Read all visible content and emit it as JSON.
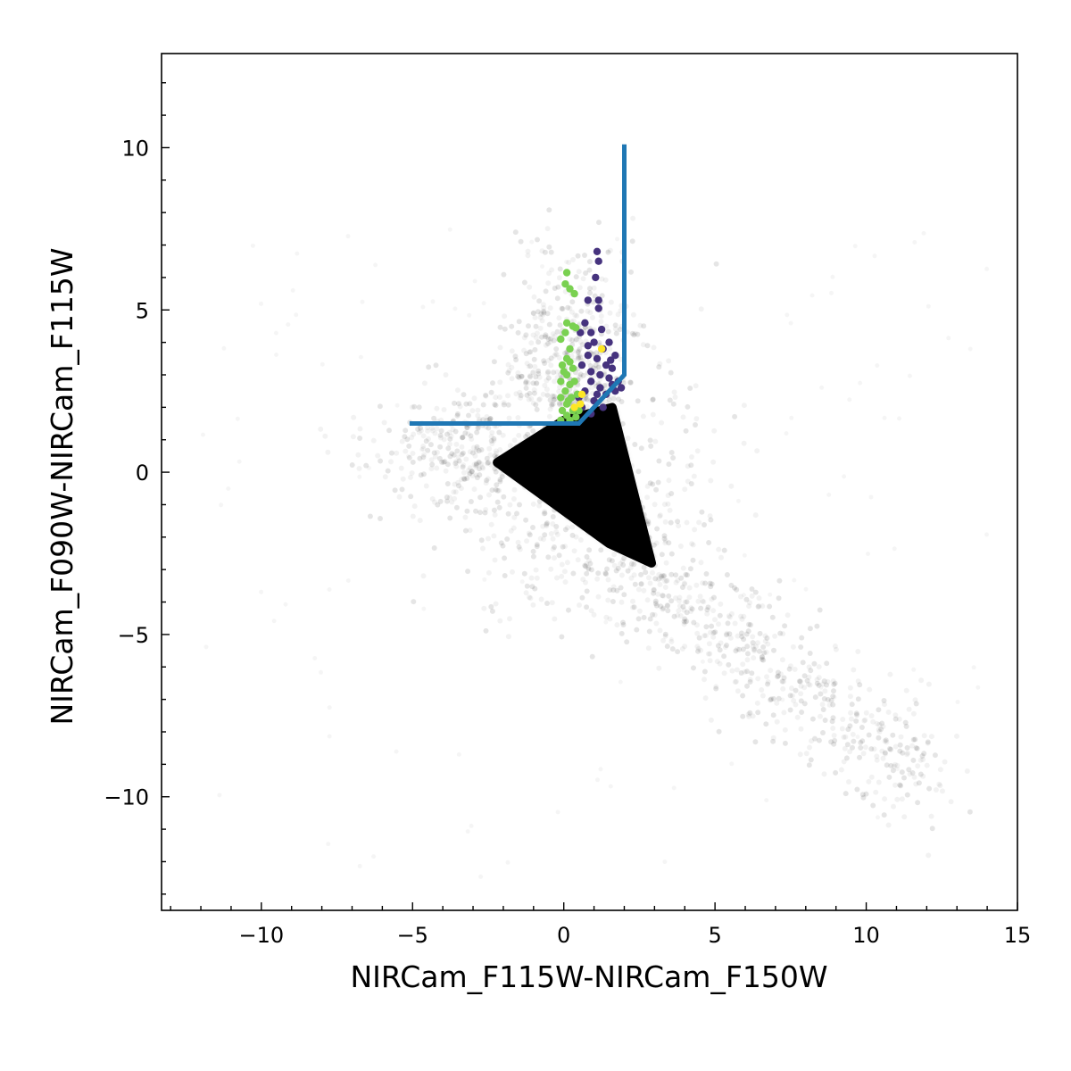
{
  "chart_data": {
    "type": "scatter",
    "title": "",
    "xlabel": "NIRCam_F115W-NIRCam_F150W",
    "ylabel": "NIRCam_F090W-NIRCam_F115W",
    "xlim": [
      -13.3,
      15.0
    ],
    "ylim": [
      -13.5,
      12.9
    ],
    "x_ticks": [
      -10,
      -5,
      0,
      5,
      10,
      15
    ],
    "y_ticks": [
      -10,
      -5,
      0,
      5,
      10
    ],
    "x_tick_labels": [
      "−10",
      "−5",
      "0",
      "5",
      "10",
      "15"
    ],
    "y_tick_labels": [
      "−10",
      "−5",
      "0",
      "5",
      "10"
    ],
    "grid": false,
    "legend": "none",
    "background_population": {
      "description_color": "#000000",
      "dense_region_polygon": [
        [
          -2.2,
          0.3
        ],
        [
          0.0,
          1.6
        ],
        [
          1.6,
          2.0
        ],
        [
          2.9,
          -2.8
        ],
        [
          1.5,
          -2.2
        ]
      ],
      "halo_extent_x": [
        -12,
        14
      ],
      "halo_extent_y": [
        -12.5,
        8.5
      ]
    },
    "selection_boundary": {
      "color": "#1f77b4",
      "points": [
        [
          -5.1,
          1.5
        ],
        [
          0.5,
          1.5
        ],
        [
          2.0,
          3.0
        ],
        [
          2.0,
          10.1
        ]
      ]
    },
    "highlight_series": [
      {
        "color": "#46337e",
        "points": [
          [
            1.1,
            6.8
          ],
          [
            1.15,
            6.5
          ],
          [
            1.05,
            6.0
          ],
          [
            0.8,
            5.3
          ],
          [
            1.15,
            5.3
          ],
          [
            1.15,
            5.05
          ],
          [
            0.7,
            4.6
          ],
          [
            0.9,
            4.3
          ],
          [
            0.55,
            4.3
          ],
          [
            1.0,
            4.0
          ],
          [
            1.5,
            4.0
          ],
          [
            1.3,
            3.8
          ],
          [
            0.8,
            3.6
          ],
          [
            1.1,
            3.5
          ],
          [
            1.4,
            3.3
          ],
          [
            0.9,
            3.1
          ],
          [
            1.7,
            3.6
          ],
          [
            1.6,
            3.2
          ],
          [
            1.2,
            3.0
          ],
          [
            0.9,
            2.8
          ],
          [
            1.5,
            2.9
          ],
          [
            1.2,
            2.6
          ],
          [
            0.7,
            2.5
          ],
          [
            1.6,
            2.7
          ],
          [
            1.4,
            2.4
          ],
          [
            1.0,
            2.2
          ],
          [
            1.7,
            2.5
          ],
          [
            0.6,
            2.0
          ],
          [
            0.9,
            1.8
          ],
          [
            1.3,
            2.0
          ],
          [
            1.8,
            2.8
          ],
          [
            1.9,
            2.6
          ],
          [
            0.5,
            2.3
          ],
          [
            1.1,
            2.4
          ],
          [
            0.8,
            3.9
          ],
          [
            1.25,
            4.4
          ],
          [
            1.55,
            3.45
          ],
          [
            0.6,
            3.3
          ]
        ]
      },
      {
        "color": "#7ad151",
        "points": [
          [
            0.1,
            6.15
          ],
          [
            0.05,
            5.8
          ],
          [
            0.2,
            5.65
          ],
          [
            0.35,
            5.5
          ],
          [
            0.1,
            4.6
          ],
          [
            0.3,
            4.5
          ],
          [
            0.4,
            4.45
          ],
          [
            0.05,
            4.3
          ],
          [
            -0.1,
            4.1
          ],
          [
            0.2,
            3.8
          ],
          [
            0.1,
            3.5
          ],
          [
            0.2,
            3.4
          ],
          [
            -0.05,
            3.3
          ],
          [
            0.3,
            3.2
          ],
          [
            0.1,
            3.0
          ],
          [
            -0.1,
            2.8
          ],
          [
            0.2,
            2.7
          ],
          [
            0.05,
            2.5
          ],
          [
            -0.1,
            2.3
          ],
          [
            0.25,
            2.3
          ],
          [
            0.1,
            2.1
          ],
          [
            -0.05,
            1.9
          ],
          [
            0.3,
            1.9
          ],
          [
            0.1,
            1.75
          ],
          [
            0.4,
            1.7
          ],
          [
            -0.1,
            1.6
          ],
          [
            0.2,
            1.6
          ],
          [
            0.5,
            1.9
          ],
          [
            0.45,
            2.4
          ],
          [
            0.35,
            2.8
          ],
          [
            0.0,
            3.1
          ],
          [
            0.15,
            2.2
          ]
        ]
      },
      {
        "color": "#fde725",
        "points": [
          [
            1.25,
            3.8
          ],
          [
            0.35,
            2.0
          ],
          [
            0.55,
            2.1
          ],
          [
            0.6,
            2.4
          ]
        ]
      }
    ]
  }
}
